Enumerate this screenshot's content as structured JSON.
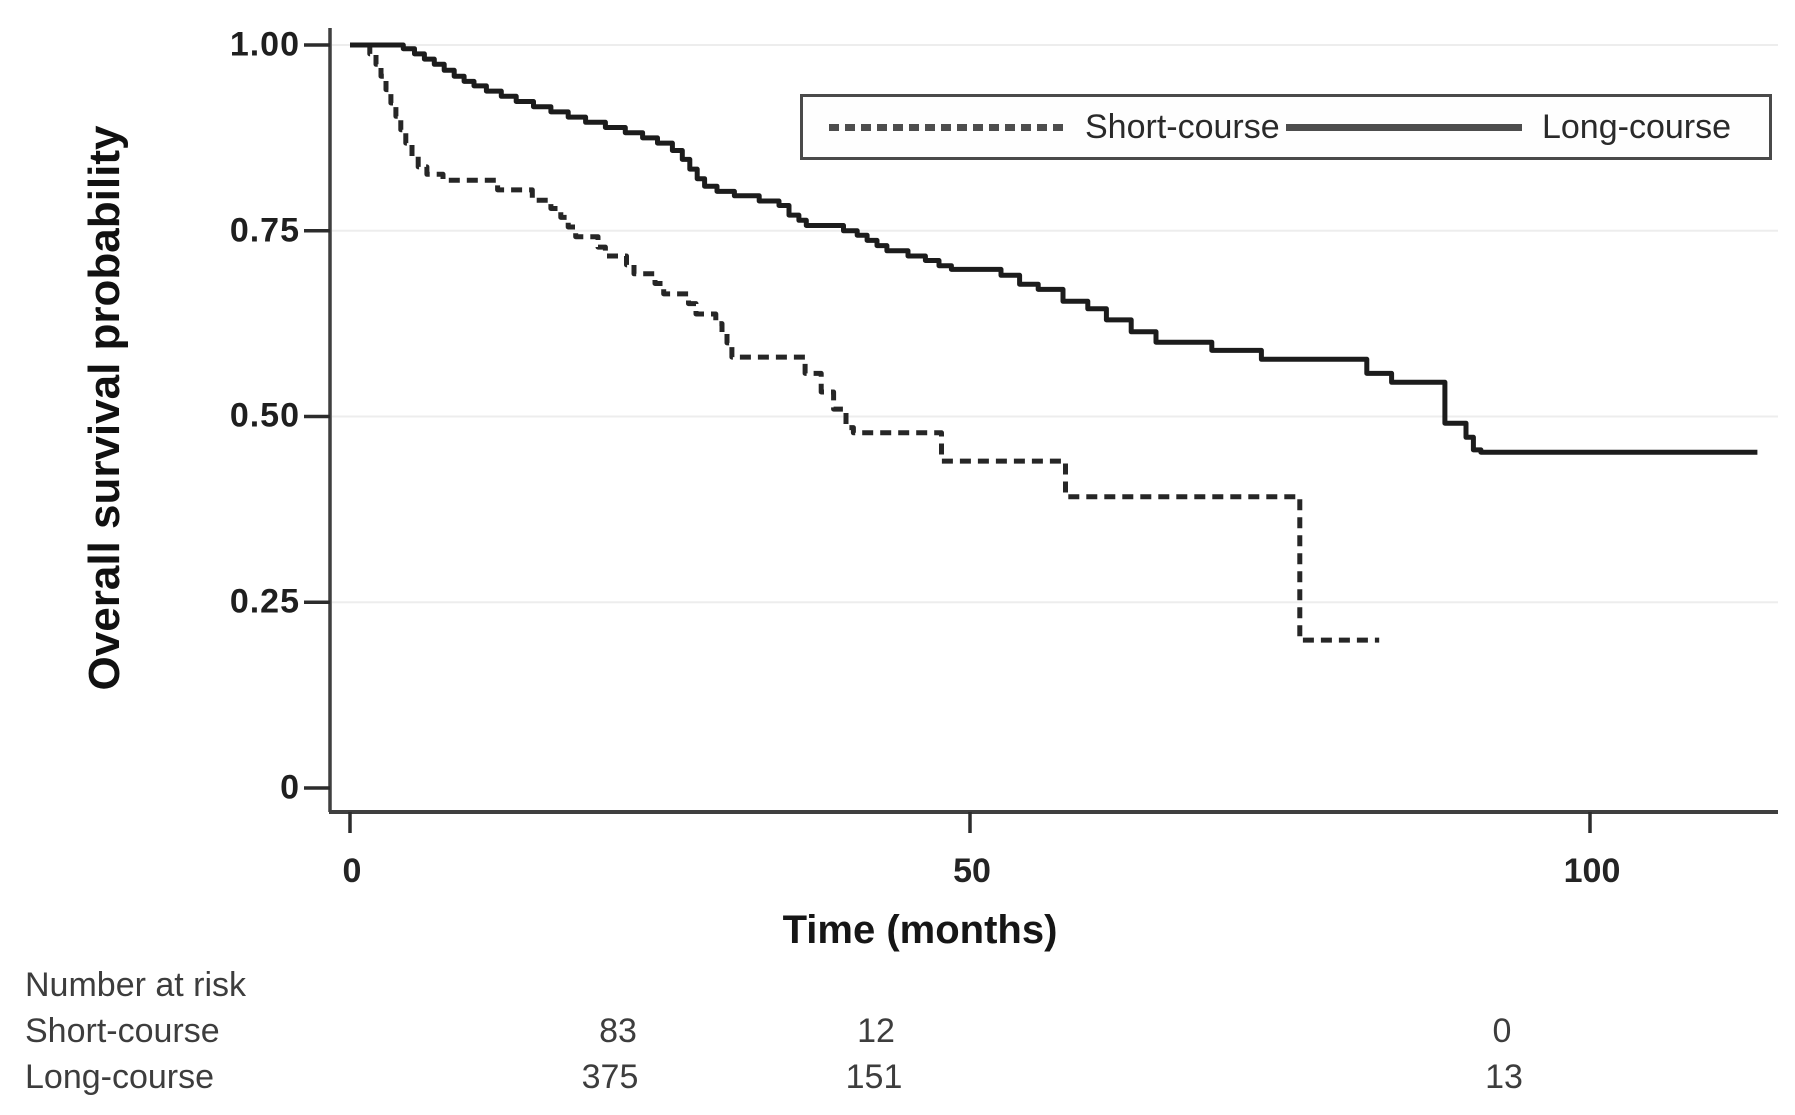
{
  "figure": {
    "ylabel": "Overall survival probability",
    "xlabel": "Time (months)",
    "legend": {
      "items": [
        {
          "label": "Short-course",
          "style": "dashed"
        },
        {
          "label": "Long-course",
          "style": "solid"
        }
      ]
    },
    "risk_table": {
      "title": "Number at risk",
      "rows": [
        {
          "label": "Short-course",
          "counts": [
            "83",
            "12",
            "0"
          ]
        },
        {
          "label": "Long-course",
          "counts": [
            "375",
            "151",
            "13"
          ]
        }
      ]
    }
  },
  "chart_data": {
    "type": "line",
    "subtype": "kaplan-meier-step",
    "title": "",
    "xlabel": "Time (months)",
    "ylabel": "Overall survival probability",
    "xlim": [
      0,
      115
    ],
    "ylim": [
      0,
      1.03
    ],
    "xticks": [
      0,
      50,
      100
    ],
    "xtick_labels": [
      "0",
      "50",
      "100"
    ],
    "yticks": [
      0,
      0.25,
      0.5,
      0.75,
      1.0
    ],
    "ytick_labels": [
      "1.00",
      "0.75",
      "0.50",
      "0.25",
      "0"
    ],
    "grid": "horizontal-light",
    "legend_position": "top-right-box",
    "colors": {
      "axis": "#3f3f3f",
      "grid": "#ededed",
      "short_course": "#262626",
      "long_course": "#1c1c1c"
    },
    "series": [
      {
        "name": "Short-course",
        "style": "dashed",
        "color": "#262626",
        "points": [
          [
            0,
            1.0
          ],
          [
            1.6,
            0.988
          ],
          [
            2.1,
            0.974
          ],
          [
            2.5,
            0.958
          ],
          [
            2.9,
            0.94
          ],
          [
            3.3,
            0.922
          ],
          [
            3.7,
            0.904
          ],
          [
            4.1,
            0.886
          ],
          [
            4.5,
            0.868
          ],
          [
            5.0,
            0.85
          ],
          [
            5.5,
            0.836
          ],
          [
            6.2,
            0.826
          ],
          [
            7.5,
            0.818
          ],
          [
            11.9,
            0.805
          ],
          [
            14.7,
            0.791
          ],
          [
            16.2,
            0.78
          ],
          [
            17.0,
            0.768
          ],
          [
            17.6,
            0.755
          ],
          [
            18.2,
            0.742
          ],
          [
            20.0,
            0.728
          ],
          [
            20.6,
            0.716
          ],
          [
            22.3,
            0.704
          ],
          [
            22.9,
            0.692
          ],
          [
            24.6,
            0.679
          ],
          [
            25.3,
            0.665
          ],
          [
            27.3,
            0.652
          ],
          [
            27.9,
            0.638
          ],
          [
            29.5,
            0.625
          ],
          [
            30.0,
            0.612
          ],
          [
            30.4,
            0.599
          ],
          [
            30.8,
            0.58
          ],
          [
            36.7,
            0.558
          ],
          [
            38.0,
            0.533
          ],
          [
            39.0,
            0.51
          ],
          [
            40.0,
            0.485
          ],
          [
            40.6,
            0.478
          ],
          [
            47.7,
            0.44
          ],
          [
            57.7,
            0.392
          ],
          [
            76.6,
            0.199
          ],
          [
            83.0,
            0.199
          ]
        ]
      },
      {
        "name": "Long-course",
        "style": "solid",
        "color": "#1c1c1c",
        "points": [
          [
            0,
            1.0
          ],
          [
            4.3,
            0.995
          ],
          [
            5.2,
            0.988
          ],
          [
            6.0,
            0.981
          ],
          [
            6.8,
            0.974
          ],
          [
            7.6,
            0.966
          ],
          [
            8.4,
            0.958
          ],
          [
            9.2,
            0.951
          ],
          [
            10.0,
            0.945
          ],
          [
            11.0,
            0.938
          ],
          [
            12.2,
            0.931
          ],
          [
            13.4,
            0.924
          ],
          [
            14.8,
            0.917
          ],
          [
            16.2,
            0.91
          ],
          [
            17.6,
            0.903
          ],
          [
            19.0,
            0.896
          ],
          [
            20.6,
            0.889
          ],
          [
            22.2,
            0.882
          ],
          [
            23.6,
            0.875
          ],
          [
            24.8,
            0.868
          ],
          [
            26.0,
            0.858
          ],
          [
            26.8,
            0.846
          ],
          [
            27.4,
            0.833
          ],
          [
            28.0,
            0.82
          ],
          [
            28.6,
            0.81
          ],
          [
            29.6,
            0.803
          ],
          [
            31.0,
            0.797
          ],
          [
            33.0,
            0.79
          ],
          [
            34.6,
            0.784
          ],
          [
            35.4,
            0.771
          ],
          [
            36.2,
            0.764
          ],
          [
            36.8,
            0.757
          ],
          [
            39.8,
            0.75
          ],
          [
            40.9,
            0.744
          ],
          [
            41.7,
            0.737
          ],
          [
            42.5,
            0.73
          ],
          [
            43.3,
            0.723
          ],
          [
            45.0,
            0.716
          ],
          [
            46.4,
            0.71
          ],
          [
            47.5,
            0.703
          ],
          [
            48.5,
            0.698
          ],
          [
            52.5,
            0.69
          ],
          [
            54.0,
            0.678
          ],
          [
            55.5,
            0.671
          ],
          [
            57.5,
            0.655
          ],
          [
            59.5,
            0.645
          ],
          [
            61.0,
            0.63
          ],
          [
            63.0,
            0.614
          ],
          [
            65.0,
            0.6
          ],
          [
            69.5,
            0.589
          ],
          [
            73.5,
            0.577
          ],
          [
            82.0,
            0.558
          ],
          [
            84.0,
            0.546
          ],
          [
            88.3,
            0.491
          ],
          [
            90.0,
            0.472
          ],
          [
            90.6,
            0.455
          ],
          [
            91.2,
            0.452
          ],
          [
            113.5,
            0.452
          ]
        ]
      }
    ],
    "risk_table": {
      "title": "Number at risk",
      "time_points": [
        0,
        50,
        100
      ],
      "rows": [
        {
          "name": "Short-course",
          "at_risk": [
            83,
            12,
            0
          ]
        },
        {
          "name": "Long-course",
          "at_risk": [
            375,
            151,
            13
          ]
        }
      ]
    }
  },
  "layout_note": ""
}
